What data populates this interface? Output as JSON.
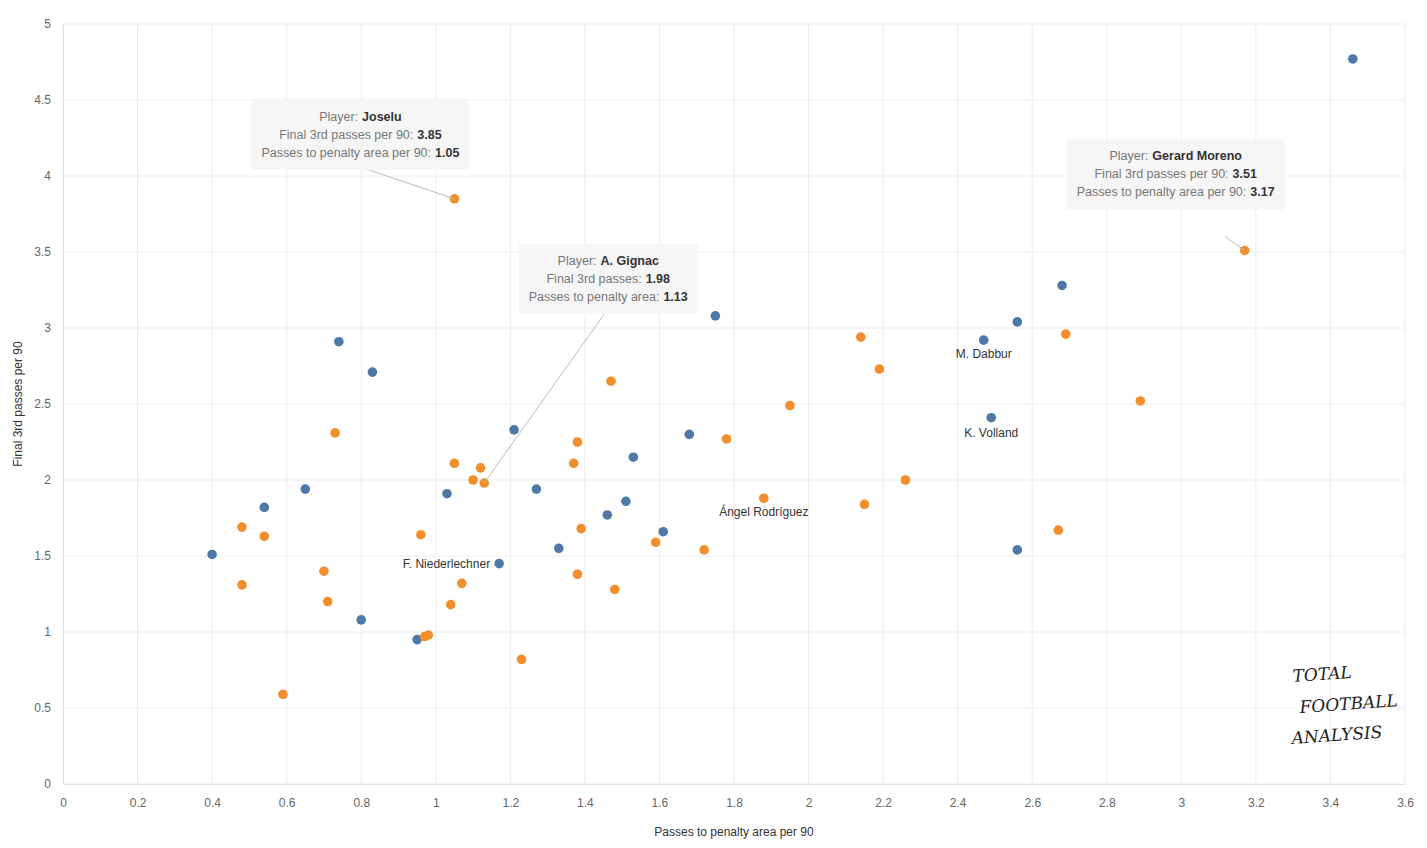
{
  "chart_data": {
    "type": "scatter",
    "x_label": "Passes to penalty area per 90",
    "y_label": "Final 3rd passes per 90",
    "xlim": [
      0,
      3.6
    ],
    "xticks": [
      0,
      0.2,
      0.4,
      0.6,
      0.8,
      1,
      1.2,
      1.4,
      1.6,
      1.8,
      2,
      2.2,
      2.4,
      2.6,
      2.8,
      3,
      3.2,
      3.4,
      3.6
    ],
    "ylim": [
      0,
      5
    ],
    "yticks": [
      0,
      0.5,
      1,
      1.5,
      2,
      2.5,
      3,
      3.5,
      4,
      4.5,
      5
    ],
    "grid": true,
    "marker": "circle",
    "series": [
      {
        "color": "#4e79a7",
        "x": [
          3.46,
          1.75,
          2.68,
          2.56,
          2.47,
          2.49,
          2.56,
          0.74,
          0.83,
          1.21,
          1.68,
          1.53,
          0.65,
          0.54,
          0.4,
          1.03,
          1.27,
          1.46,
          1.51,
          1.61,
          1.33,
          1.17,
          0.8,
          0.95
        ],
        "values": [
          4.77,
          3.08,
          3.28,
          3.04,
          2.92,
          2.41,
          1.54,
          2.91,
          2.71,
          2.33,
          2.3,
          2.15,
          1.94,
          1.82,
          1.51,
          1.91,
          1.94,
          1.77,
          1.86,
          1.66,
          1.55,
          1.45,
          1.08,
          0.95
        ]
      },
      {
        "color": "#f28e2b",
        "x": [
          1.05,
          3.17,
          2.14,
          2.19,
          2.69,
          2.89,
          1.95,
          1.47,
          0.73,
          1.38,
          1.78,
          1.05,
          1.37,
          1.12,
          1.1,
          1.13,
          1.88,
          2.26,
          2.15,
          0.48,
          0.54,
          0.96,
          1.39,
          1.59,
          1.72,
          2.67,
          0.7,
          0.48,
          1.07,
          1.38,
          1.48,
          0.71,
          1.04,
          0.97,
          0.98,
          1.23,
          0.59
        ],
        "values": [
          3.85,
          3.51,
          2.94,
          2.73,
          2.96,
          2.52,
          2.49,
          2.65,
          2.31,
          2.25,
          2.27,
          2.11,
          2.11,
          2.08,
          2.0,
          1.98,
          1.88,
          2.0,
          1.84,
          1.69,
          1.63,
          1.64,
          1.68,
          1.59,
          1.54,
          1.67,
          1.4,
          1.31,
          1.32,
          1.38,
          1.28,
          1.2,
          1.18,
          0.97,
          0.98,
          0.82,
          0.59
        ]
      }
    ],
    "annotations": [
      {
        "text": "M. Dabbur",
        "x": 2.47,
        "y": 2.92
      },
      {
        "text": "K. Volland",
        "x": 2.49,
        "y": 2.41
      },
      {
        "text": "Ángel Rodríguez",
        "x": 1.88,
        "y": 1.88
      },
      {
        "text": "F. Niederlechner",
        "x": 1.17,
        "y": 1.45
      }
    ],
    "tooltips": [
      {
        "x": 1.05,
        "y": 3.85,
        "lines": [
          {
            "label": "Player:",
            "value": "Joselu"
          },
          {
            "label": "Final 3rd passes per 90:",
            "value": "3.85"
          },
          {
            "label": "Passes to penalty area per 90:",
            "value": "1.05"
          }
        ]
      },
      {
        "x": 1.13,
        "y": 1.98,
        "lines": [
          {
            "label": "Player:",
            "value": "A. Gignac"
          },
          {
            "label": "Final 3rd passes:",
            "value": "1.98"
          },
          {
            "label": "Passes to penalty area:",
            "value": "1.13"
          }
        ]
      },
      {
        "x": 3.17,
        "y": 3.51,
        "lines": [
          {
            "label": "Player:",
            "value": "Gerard Moreno"
          },
          {
            "label": "Final 3rd passes per 90:",
            "value": "3.51"
          },
          {
            "label": "Passes to penalty area per 90:",
            "value": "3.17"
          }
        ]
      }
    ],
    "watermark": [
      "TOTAL",
      "FOOTBALL",
      "ANALYSIS"
    ]
  }
}
